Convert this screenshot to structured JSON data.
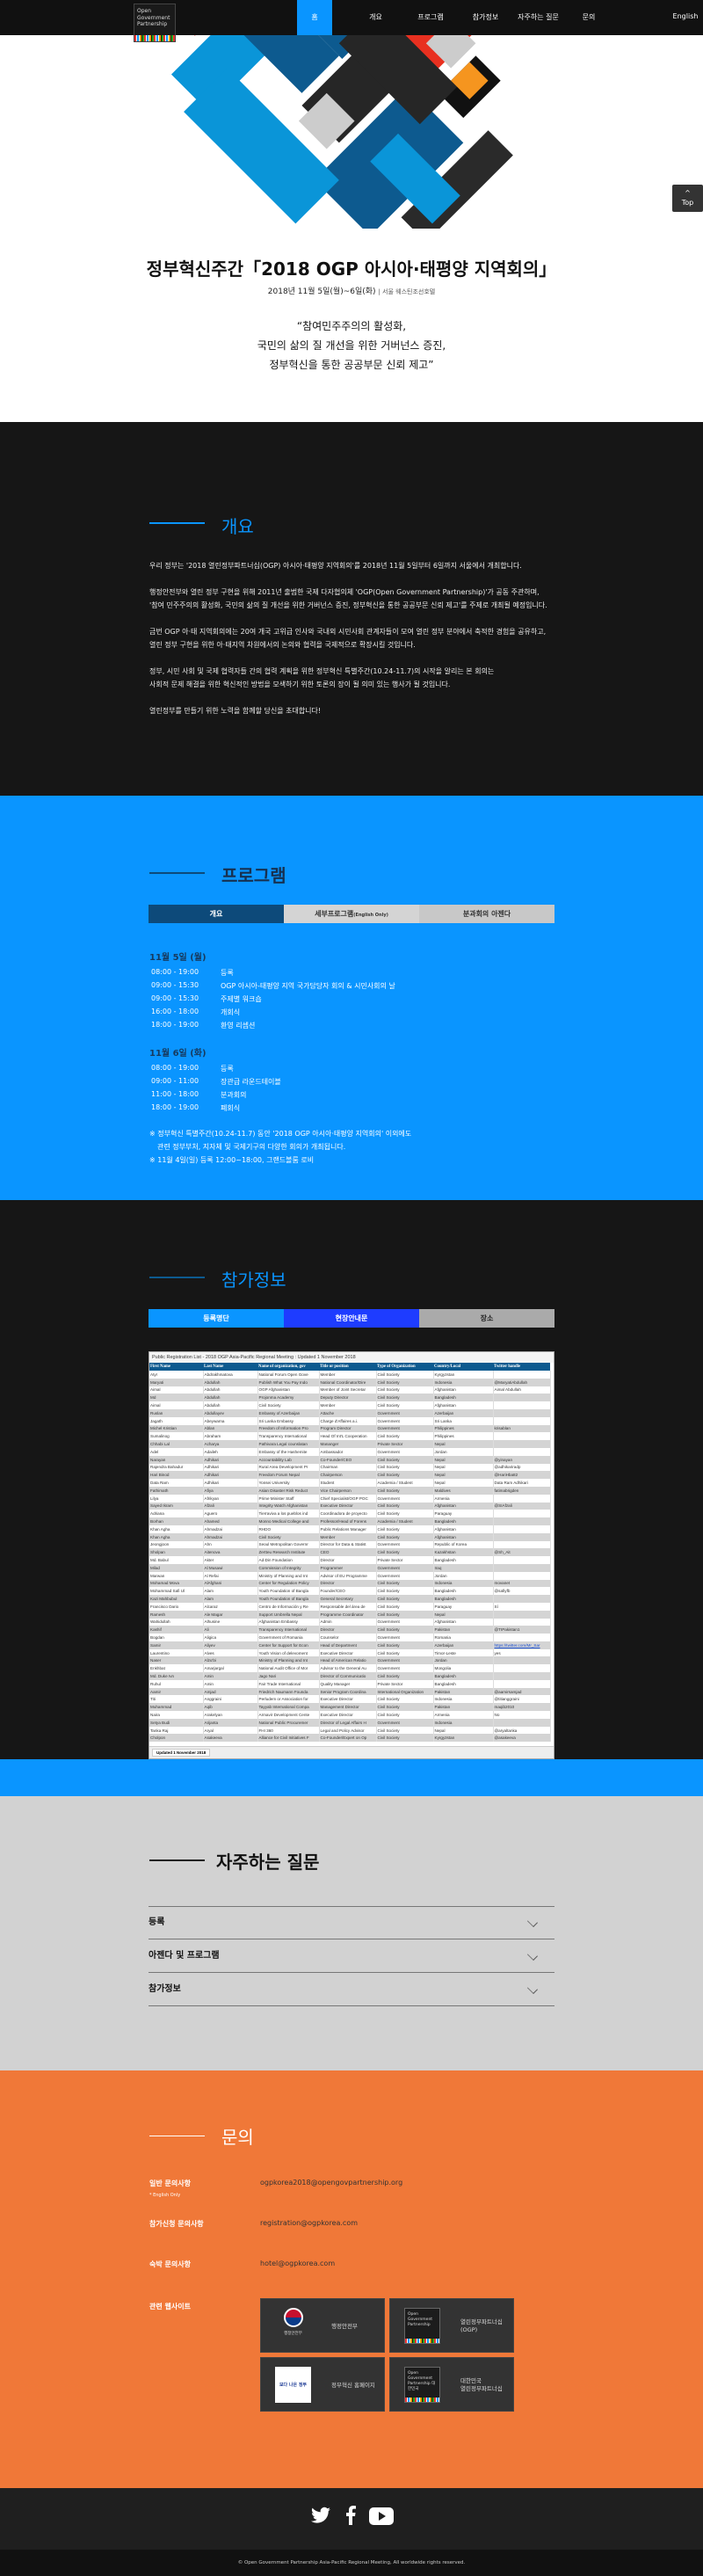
{
  "nav": {
    "logo_text": "Open Government Partnership",
    "items": [
      "홈",
      "개요",
      "프로그램",
      "참가정보",
      "자주하는 질문",
      "문의"
    ],
    "active": "홈",
    "language": "English"
  },
  "top_button": {
    "arrow": "^",
    "label": "Top"
  },
  "hero": {
    "title": "정부혁신주간「2018 OGP 아시아·태평양 지역회의」",
    "date": "2018년 11월 5일(월)~6일(화)",
    "venue": "| 서울 웨스틴조선호텔",
    "quote": [
      "“참여민주주의의 활성화,",
      "국민의 삶의 질 개선을 위한 거버넌스 증진,",
      "정부혁신을 통한 공공부문 신뢰 제고”"
    ]
  },
  "overview": {
    "title": "개요",
    "paragraphs": [
      [
        "우리 정부는 '2018 열린정부파트너십(OGP) 아시아·태평양 지역회의'를 2018년 11월 5일부터 6일까지 서울에서 개최합니다."
      ],
      [
        "행정안전부와 열린 정부 구현을 위해 2011년 출범한 국제 다자협의체 'OGP(Open Government Partnership)'가 공동 주관하며,",
        "'참여 민주주의의 활성화, 국민의 삶의 질 개선을 위한 거버넌스 증진, 정부혁신을 통한 공공부문 신뢰 제고'를 주제로 개최될 예정입니다."
      ],
      [
        "금번 OGP 아·태 지역회의에는 20여 개국 고위급 인사와 국내외 시민사회 관계자들이 모여 열린 정부 분야에서 축적한 경험을 공유하고,",
        "열린 정부 구현을 위한 아·태지역 차원에서의 논의와 협력을 국제적으로 확장시킬 것입니다."
      ],
      [
        "정부, 시민 사회 및 국제 협력자들 간의 협력 계획을 위한 정부혁신 특별주간(10.24-11.7)의 시작을 알리는 본 회의는",
        "사회적 문제 해결을 위한 혁신적인 방법을 모색하기 위한 토론의 장이 될 의미 있는 행사가 될 것입니다."
      ],
      [
        "열린정부를 만들기 위한 노력을 함께할 당신을 초대합니다!"
      ]
    ]
  },
  "program": {
    "title": "프로그램",
    "tabs": [
      {
        "label": "개요",
        "sub": ""
      },
      {
        "label": "세부프로그램",
        "sub": "(English Only)"
      },
      {
        "label": "분과회의 아젠다",
        "sub": ""
      }
    ],
    "active_tab": "개요",
    "days": [
      {
        "date": "11월 5일 (월)",
        "items": [
          {
            "time": "08:00 - 19:00",
            "title": "등록"
          },
          {
            "time": "09:00 - 15:30",
            "title": "OGP 아시아-태평양 지역 국가담당자 회의 & 시민사회의 날"
          },
          {
            "time": "09:00 - 15:30",
            "title": "주제별 워크숍"
          },
          {
            "time": "16:00 - 18:00",
            "title": "개회식"
          },
          {
            "time": "18:00 - 19:00",
            "title": "환영 리셉션"
          }
        ]
      },
      {
        "date": "11월 6일 (화)",
        "items": [
          {
            "time": "08:00 - 19:00",
            "title": "등록"
          },
          {
            "time": "09:00 - 11:00",
            "title": "장관급 라운드테이블"
          },
          {
            "time": "11:00 - 18:00",
            "title": "분과회의"
          },
          {
            "time": "18:00 - 19:00",
            "title": "폐회식"
          }
        ]
      }
    ],
    "notes": [
      "※ 정부혁신 특별주간(10.24-11.7) 동안 '2018 OGP 아시아·태평양 지역회의' 이외에도",
      "관련 정부부처, 지자체 및 국제기구의 다양한 회의가 개최됩니다.",
      "※ 11월 4일(일) 등록 12:00~18:00, 그랜드볼룸 로비"
    ]
  },
  "participants": {
    "title": "참가정보",
    "tabs": [
      "등록명단",
      "현장안내문",
      "장소"
    ],
    "active_tab": "등록명단",
    "table": {
      "caption": "Public Registration List - 2018 OGP Asia-Pacific Regional Meeting : Updated 1 November 2018",
      "columns": [
        "First Name",
        "Last Name",
        "Name of organization, gov",
        "Title or position",
        "Type of Organization",
        "Country/Local",
        "Twitter handle"
      ],
      "rows": [
        [
          "Atyr",
          "Abdrakhmatova",
          "National Forum Open Gove",
          "Member",
          "Civil Society",
          "Kyrgyzstan",
          ""
        ],
        [
          "Maryati",
          "Abdullah",
          "Publish What You Pay Indo",
          "National Coordinator/Dire",
          "Civil Society",
          "Indonesia",
          "@MaryatiAbdullah"
        ],
        [
          "Aimal",
          "Abdullah",
          "OGP Afghanistan",
          "Member of Joint Secretar",
          "Civil Society",
          "Afghanistan",
          "Aimal Abdullah"
        ],
        [
          "Md",
          "Abdullah",
          "Projonma Academy",
          "Deputy Director",
          "Civil Society",
          "Bangladesh",
          ""
        ],
        [
          "Aimal",
          "Abdullah",
          "Civil Society",
          "Member",
          "Civil Society",
          "Afghanistan",
          ""
        ],
        [
          "Ruslan",
          "Abdullayev",
          "Embassy of Azerbaijan",
          "Attache",
          "Government",
          "Azerbaijan",
          ""
        ],
        [
          "Jagath",
          "Abeywarna",
          "Sri Lanka Embassy",
          "Charge d'Affaires a.i.",
          "Government",
          "Sri Lanka",
          ""
        ],
        [
          "Michel Kristian",
          "Ablan",
          "Freedom of Information Pro",
          "Program Director",
          "Government",
          "Philippines",
          "krisablan"
        ],
        [
          "Sumalinog",
          "Abraham",
          "Transparency International",
          "Head Of Int'L Cooperation",
          "Civil Society",
          "Philippines",
          ""
        ],
        [
          "Chhabi Lal",
          "Acharya",
          "Pathivara Legal counslatan",
          "Mananger",
          "Private Sector",
          "Nepal",
          ""
        ],
        [
          "Adel",
          "Adaileh",
          "Embassy of the Hashemite",
          "Ambassador",
          "Government",
          "Jordan",
          ""
        ],
        [
          "Narayan",
          "Adhikari",
          "Accountability Lab",
          "Co-Founder/CEO",
          "Civil Society",
          "Nepal",
          "@yinayan"
        ],
        [
          "Rajendra Bahadur",
          "Adhikari",
          "Rural Area Development Pr",
          "Chairman",
          "Civil Society",
          "Nepal",
          "@adhikariradp"
        ],
        [
          "Hari Binod",
          "Adhikari",
          "Freedom Forum Nepal",
          "Chairperson",
          "Civil Society",
          "Nepal",
          "@HariHba82"
        ],
        [
          "Data Ram",
          "Adhikari",
          "Yonsei University",
          "Student",
          "Academia / Student",
          "Nepal",
          "Data Ram Adhikari"
        ],
        [
          "Fathimath",
          "Afiya",
          "Asian Disaster Risk Reduct",
          "Vice Chairperson",
          "Civil Society",
          "Maldives",
          "fatimabrigden"
        ],
        [
          "Lilya",
          "Afrikyan",
          "Prime Minister Staff",
          "Chief Specialist/OGP POC",
          "Government",
          "Armenia",
          ""
        ],
        [
          "Sayed Ikram",
          "Afzali",
          "Integrity Watch Afghanistan",
          "Executive Director",
          "Civil Society",
          "Afghanistan",
          "@SIAfzali"
        ],
        [
          "Adriana",
          "Aguero",
          "Tierraviva a los pueblos ind",
          "Coordinadora de proyecto",
          "Civil Society",
          "Paraguay",
          ""
        ],
        [
          "Borhan",
          "Ahamed",
          "Monno Medical College and",
          "Professor/Head of Forens",
          "Academia / Student",
          "Bangladesh",
          ""
        ],
        [
          "Khan Agha",
          "Ahmadzai",
          "RHDO",
          "Public Relations Manager",
          "Civil Society",
          "Afghanistan",
          ""
        ],
        [
          "Khan Agha",
          "Ahmadzai",
          "Civil Society",
          "Member",
          "Civil Society",
          "Afghanistan",
          ""
        ],
        [
          "Jeongjoon",
          "Ahn",
          "Seoul Metropolitan Governr",
          "Director for Data & Statist",
          "Government",
          "Republic of Korea",
          ""
        ],
        [
          "Sholpan",
          "Aitenova",
          "Zertteu Research Institute",
          "CEO",
          "Civil Society",
          "Kazakhstan",
          "@Sh_Ait"
        ],
        [
          "Md. Babul",
          "Akter",
          "Ad-Din Foundation",
          "Director",
          "Private Sector",
          "Bangladesh",
          ""
        ],
        [
          "Milad",
          "Al Musawi",
          "Commission of Integrity",
          "Programmer",
          "Government",
          "Iraq",
          ""
        ],
        [
          "Marwan",
          "Al Refai",
          "Ministry of Planning and Int",
          "Advisor of EU Programme",
          "Government",
          "Jordan",
          ""
        ],
        [
          "Mohamad Mova",
          "AlAfghani",
          "Center for Regulation Policy",
          "Director",
          "Civil Society",
          "Indonesia",
          "movanet"
        ],
        [
          "Mohammad Safi Ul",
          "Alam",
          "Youth Foundation of Bangla",
          "Founder/CEO",
          "Civil Society",
          "Bangladesh",
          "@safiyfb"
        ],
        [
          "Kazi Mahbubul",
          "Alam",
          "Youth Foundation of Bangla",
          "General Secretary",
          "Civil Society",
          "Bangladesh",
          ""
        ],
        [
          "Francisco Dario",
          "Alcaraz",
          "Centro de Información y Re",
          "Responsable del área de",
          "Civil Society",
          "Paraguay",
          "Sí"
        ],
        [
          "Ramesh",
          "Ale Magar",
          "Support Umbrella Nepal",
          "Programme Coordinator",
          "Civil Society",
          "Nepal",
          ""
        ],
        [
          "Wahidullah",
          "Alhusine",
          "Afghanistan Embassy",
          "Admin",
          "Government",
          "Afghanistan",
          ""
        ],
        [
          "Kashif",
          "Ali",
          "Transparency International",
          "Director",
          "Civil Society",
          "Pakistan",
          "@TIPakistan1"
        ],
        [
          "Bogdan",
          "Aligica",
          "Government of Romania",
          "Counselor",
          "Government",
          "Romania",
          ""
        ],
        [
          "Samir",
          "Aliyev",
          "Center for Support for Econ",
          "Head of Department",
          "Civil Society",
          "Azerbaijan",
          "https://twitter.com/Mr_Sar"
        ],
        [
          "Laurentino",
          "Alves",
          "Youth Vision of delevoment",
          "Executive Director",
          "Civil Society",
          "Timor-Leste",
          "yes"
        ],
        [
          "Naser",
          "Alzu'bi",
          "Ministry of Planning and Int",
          "Head of American Relatio",
          "Government",
          "Jordan",
          ""
        ],
        [
          "Enkhbat",
          "Amarjargal",
          "National Audit Office of Mor",
          "Advisor to the General Au",
          "Government",
          "Mongolia",
          ""
        ],
        [
          "Md. Duke Ivn",
          "Amin",
          "Jago Nari",
          "Director of Communicatio",
          "Civil Society",
          "Bangladesh",
          ""
        ],
        [
          "Ruhul",
          "Amin",
          "Fair Trade International",
          "Quality Manager",
          "Private Sector",
          "Bangladesh",
          ""
        ],
        [
          "Aamir",
          "Amjad",
          "Friedrich Naumann Founda",
          "Senior Program Coordina",
          "International Organization",
          "Pakistan",
          "@aamirsamjad"
        ],
        [
          "Titi",
          "Anggraini",
          "Perludem or Association for",
          "Executive Director",
          "Civil Society",
          "Indonesia",
          "@titianggraini"
        ],
        [
          "Muhammad",
          "Aqib",
          "Tayyab International Compa",
          "Management Director",
          "Civil Society",
          "Pakistan",
          "maqib2010"
        ],
        [
          "Naira",
          "Arakelyan",
          "Armavir Development Cente",
          "Executive Director",
          "Civil Society",
          "Armenia",
          "No"
        ],
        [
          "Setya Budi",
          "Arijanta",
          "National Public Procuremer",
          "Director of Legal Affairs H",
          "Government",
          "Indonesia",
          ""
        ],
        [
          "Tanka Raj",
          "Aryal",
          "FHI 360",
          "Legal and Policy Advisor",
          "Civil Society",
          "Nepal",
          "@aryaltanka"
        ],
        [
          "Cholpon",
          "Asakeeva",
          "Alliance for Civil Initiatives F",
          "Co-Founder/Expert on Op",
          "Civil Society",
          "Kyrgyzstan",
          "@asakeeva"
        ]
      ],
      "sheet_tab": "Updated 1 November 2018"
    }
  },
  "faq": {
    "title": "자주하는 질문",
    "items": [
      "등록",
      "아젠다 및 프로그램",
      "참가정보"
    ]
  },
  "contact": {
    "title": "문의",
    "rows": [
      {
        "label": "일반 문의사항",
        "note": "* English Only",
        "value": "ogpkorea2018@opengovpartnership.org"
      },
      {
        "label": "참가신청 문의사항",
        "note": "",
        "value": "registration@ogpkorea.com"
      },
      {
        "label": "숙박 문의사항",
        "note": "",
        "value": "hotel@ogpkorea.com"
      }
    ],
    "related_label": "관련 웹사이트",
    "sites": [
      {
        "name": "행정안전부",
        "logo_text": "행정안전부"
      },
      {
        "name": "열린정부파트너십(OGP)",
        "logo_text": "Open Government Partnership"
      },
      {
        "name": "정부혁신 홈페이지",
        "logo_text": "보다 나은 정부"
      },
      {
        "name": "대한민국\n열린정부파트너십",
        "logo_text": "Open Government Partnership 대한민국"
      }
    ]
  },
  "footer": {
    "social": [
      "twitter-icon",
      "facebook-icon",
      "youtube-icon"
    ],
    "copyright": "© Open Government Partnership Asia-Pacific Regional Meeting, All worldwide rights reserved."
  },
  "colors": {
    "blue": "#0a95ff",
    "dark": "#161616",
    "orange": "#f07838",
    "gray": "#d2d2d2",
    "navy": "#0d4a7a"
  }
}
